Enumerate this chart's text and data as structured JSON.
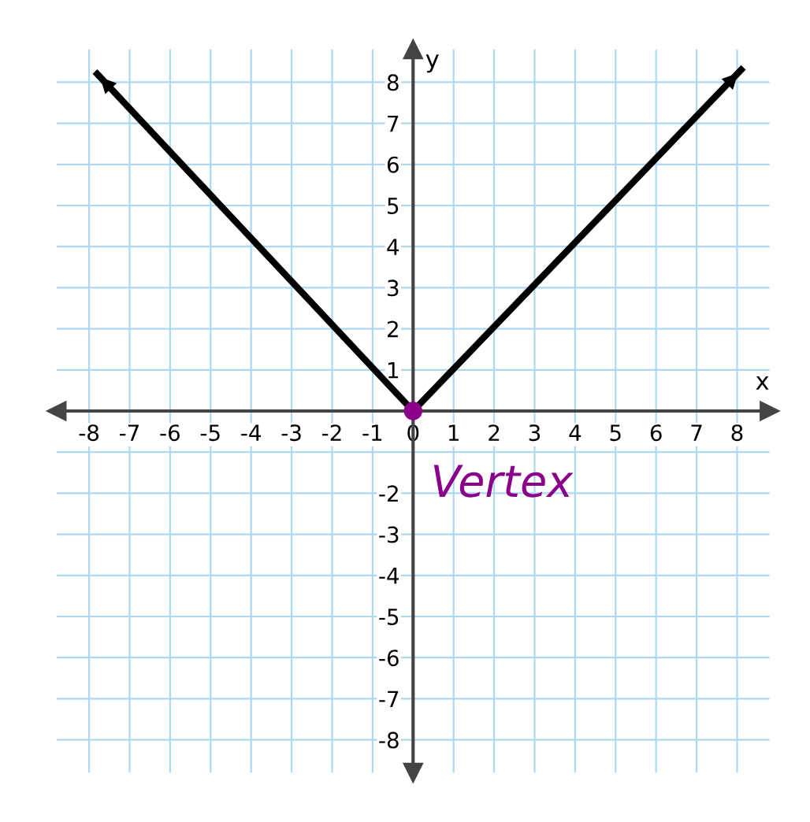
{
  "chart_data": {
    "type": "line",
    "xlabel": "x",
    "ylabel": "y",
    "xlim": [
      -8.8,
      8.8
    ],
    "ylim": [
      -8.8,
      8.8
    ],
    "xticks": [
      -8,
      -7,
      -6,
      -5,
      -4,
      -3,
      -2,
      -1,
      0,
      1,
      2,
      3,
      4,
      5,
      6,
      7,
      8
    ],
    "yticks": [
      -8,
      -7,
      -6,
      -5,
      -4,
      -3,
      -2,
      {
        "value": -1,
        "label": null
      },
      {
        "value": 0,
        "label": null
      },
      1,
      2,
      3,
      4,
      5,
      6,
      7,
      8
    ],
    "grid": true,
    "marker": "none",
    "series": [
      {
        "color": "#000000",
        "x": [
          -7.8,
          0,
          8.1
        ],
        "values": [
          8.2,
          0,
          8.3
        ]
      },
      {
        "type": "scatter",
        "marker": "circle",
        "color": "#8b008b",
        "x": [
          0
        ],
        "values": [
          0
        ]
      }
    ],
    "annotations": [
      {
        "text": "Vertex",
        "x": 0,
        "y": 0
      }
    ]
  }
}
